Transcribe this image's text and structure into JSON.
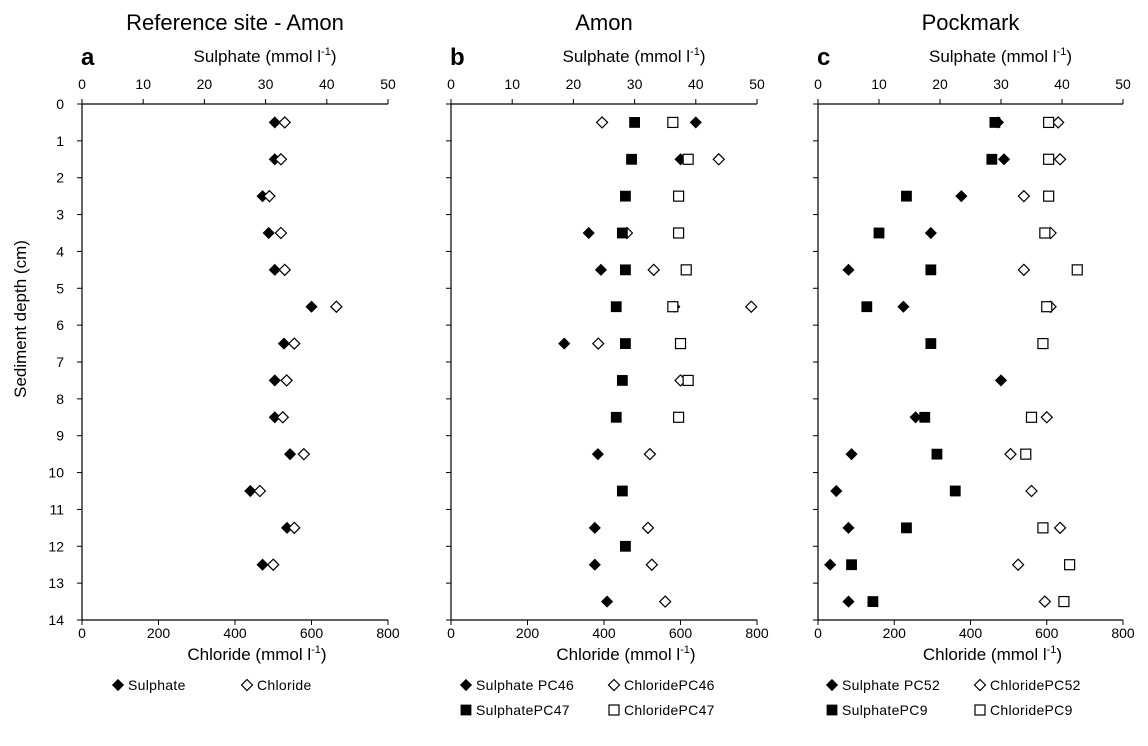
{
  "figure": {
    "ylabel": "Sediment depth (cm)",
    "ylim": [
      0,
      14
    ],
    "yticks": [
      0,
      1,
      2,
      3,
      4,
      5,
      6,
      7,
      8,
      9,
      10,
      11,
      12,
      13,
      14
    ]
  },
  "chart_data": [
    {
      "type": "scatter",
      "title": "Reference site - Amon",
      "panel_letter": "a",
      "top_axis": {
        "label": "Sulphate (mmol l",
        "label_sup": "-1",
        "label_end": ")",
        "range": [
          0,
          50
        ],
        "ticks": [
          0,
          10,
          20,
          30,
          40,
          50
        ]
      },
      "bottom_axis": {
        "label": "Chloride (mmol l",
        "label_sup": "-1",
        "label_end": ")",
        "range": [
          0,
          800
        ],
        "ticks": [
          0,
          200,
          400,
          600,
          800
        ]
      },
      "y_axis": {
        "label": "Sediment depth (cm)",
        "range": [
          0,
          14
        ],
        "inverted": true
      },
      "series": [
        {
          "name": "Sulphate",
          "axis": "top",
          "marker": "diamond-filled",
          "points": [
            [
              31.5,
              0.5
            ],
            [
              31.5,
              1.5
            ],
            [
              29.5,
              2.5
            ],
            [
              30.5,
              3.5
            ],
            [
              31.5,
              4.5
            ],
            [
              37.5,
              5.5
            ],
            [
              33,
              6.5
            ],
            [
              31.5,
              7.5
            ],
            [
              31.5,
              8.5
            ],
            [
              34,
              9.5
            ],
            [
              27.5,
              10.5
            ],
            [
              33.5,
              11.5
            ],
            [
              29.5,
              12.5
            ]
          ]
        },
        {
          "name": "Chloride",
          "axis": "bottom",
          "marker": "diamond-open",
          "points": [
            [
              530,
              0.5
            ],
            [
              520,
              1.5
            ],
            [
              490,
              2.5
            ],
            [
              520,
              3.5
            ],
            [
              530,
              4.5
            ],
            [
              665,
              5.5
            ],
            [
              555,
              6.5
            ],
            [
              535,
              7.5
            ],
            [
              525,
              8.5
            ],
            [
              580,
              9.5
            ],
            [
              465,
              10.5
            ],
            [
              555,
              11.5
            ],
            [
              500,
              12.5
            ]
          ]
        }
      ],
      "legend": [
        {
          "marker": "diamond-filled",
          "label": "Sulphate"
        },
        {
          "marker": "diamond-open",
          "label": "Chloride"
        }
      ]
    },
    {
      "type": "scatter",
      "title": "Amon",
      "panel_letter": "b",
      "top_axis": {
        "label": "Sulphate (mmol l",
        "label_sup": "-1",
        "label_end": ")",
        "range": [
          0,
          50
        ],
        "ticks": [
          0,
          10,
          20,
          30,
          40,
          50
        ]
      },
      "bottom_axis": {
        "label": "Chloride (mmol l",
        "label_sup": "-1",
        "label_end": ")",
        "range": [
          0,
          800
        ],
        "ticks": [
          0,
          200,
          400,
          600,
          800
        ]
      },
      "y_axis": {
        "label": "Sediment depth (cm)",
        "range": [
          0,
          14
        ],
        "inverted": true
      },
      "series": [
        {
          "name": "Sulphate PC46",
          "axis": "top",
          "marker": "diamond-filled",
          "points": [
            [
              40,
              0.5
            ],
            [
              37.5,
              1.5
            ],
            [
              22.5,
              3.5
            ],
            [
              24.5,
              4.5
            ],
            [
              36.5,
              5.5
            ],
            [
              18.5,
              6.5
            ],
            [
              24,
              9.5
            ],
            [
              23.5,
              11.5
            ],
            [
              23.5,
              12.5
            ],
            [
              25.5,
              13.5
            ]
          ]
        },
        {
          "name": "Chloride PC46",
          "axis": "bottom",
          "marker": "diamond-open",
          "points": [
            [
              395,
              0.5
            ],
            [
              700,
              1.5
            ],
            [
              460,
              3.5
            ],
            [
              530,
              4.5
            ],
            [
              785,
              5.5
            ],
            [
              385,
              6.5
            ],
            [
              600,
              7.5
            ],
            [
              520,
              9.5
            ],
            [
              515,
              11.5
            ],
            [
              525,
              12.5
            ],
            [
              560,
              13.5
            ]
          ]
        },
        {
          "name": "Sulphate PC47",
          "axis": "top",
          "marker": "square-filled",
          "points": [
            [
              30,
              0.5
            ],
            [
              29.5,
              1.5
            ],
            [
              28.5,
              2.5
            ],
            [
              28,
              3.5
            ],
            [
              28.5,
              4.5
            ],
            [
              27,
              5.5
            ],
            [
              28.5,
              6.5
            ],
            [
              28,
              7.5
            ],
            [
              27,
              8.5
            ],
            [
              28,
              10.5
            ],
            [
              28.5,
              12
            ]
          ]
        },
        {
          "name": "Chloride PC47",
          "axis": "bottom",
          "marker": "square-open",
          "points": [
            [
              580,
              0.5
            ],
            [
              620,
              1.5
            ],
            [
              595,
              2.5
            ],
            [
              595,
              3.5
            ],
            [
              615,
              4.5
            ],
            [
              580,
              5.5
            ],
            [
              600,
              6.5
            ],
            [
              620,
              7.5
            ],
            [
              595,
              8.5
            ]
          ]
        }
      ],
      "legend": [
        {
          "marker": "diamond-filled",
          "label": "Sulphate PC46"
        },
        {
          "marker": "diamond-open",
          "label": "ChloridePC46"
        },
        {
          "marker": "square-filled",
          "label": "SulphatePC47"
        },
        {
          "marker": "square-open",
          "label": "ChloridePC47"
        }
      ]
    },
    {
      "type": "scatter",
      "title": "Pockmark",
      "panel_letter": "c",
      "top_axis": {
        "label": "Sulphate (mmol l",
        "label_sup": "-1",
        "label_end": ")",
        "range": [
          0,
          50
        ],
        "ticks": [
          0,
          10,
          20,
          30,
          40,
          50
        ]
      },
      "bottom_axis": {
        "label": "Chloride (mmol l",
        "label_sup": "-1",
        "label_end": ")",
        "range": [
          0,
          800
        ],
        "ticks": [
          0,
          200,
          400,
          600,
          800
        ]
      },
      "y_axis": {
        "label": "Sediment depth (cm)",
        "range": [
          0,
          14
        ],
        "inverted": true
      },
      "series": [
        {
          "name": "Sulphate PC52",
          "axis": "top",
          "marker": "diamond-filled",
          "points": [
            [
              29.5,
              0.5
            ],
            [
              30.5,
              1.5
            ],
            [
              23.5,
              2.5
            ],
            [
              18.5,
              3.5
            ],
            [
              5,
              4.5
            ],
            [
              14,
              5.5
            ],
            [
              30,
              7.5
            ],
            [
              16,
              8.5
            ],
            [
              5.5,
              9.5
            ],
            [
              3,
              10.5
            ],
            [
              5,
              11.5
            ],
            [
              2,
              12.5
            ],
            [
              5,
              13.5
            ]
          ]
        },
        {
          "name": "Chloride PC52",
          "axis": "bottom",
          "marker": "diamond-open",
          "points": [
            [
              630,
              0.5
            ],
            [
              635,
              1.5
            ],
            [
              540,
              2.5
            ],
            [
              610,
              3.5
            ],
            [
              540,
              4.5
            ],
            [
              610,
              5.5
            ],
            [
              600,
              8.5
            ],
            [
              505,
              9.5
            ],
            [
              560,
              10.5
            ],
            [
              635,
              11.5
            ],
            [
              525,
              12.5
            ],
            [
              595,
              13.5
            ]
          ]
        },
        {
          "name": "Sulphate PC9",
          "axis": "top",
          "marker": "square-filled",
          "points": [
            [
              29,
              0.5
            ],
            [
              28.5,
              1.5
            ],
            [
              14.5,
              2.5
            ],
            [
              10,
              3.5
            ],
            [
              18.5,
              4.5
            ],
            [
              8,
              5.5
            ],
            [
              18.5,
              6.5
            ],
            [
              17.5,
              8.5
            ],
            [
              19.5,
              9.5
            ],
            [
              22.5,
              10.5
            ],
            [
              14.5,
              11.5
            ],
            [
              5.5,
              12.5
            ],
            [
              9,
              13.5
            ]
          ]
        },
        {
          "name": "Chloride PC9",
          "axis": "bottom",
          "marker": "square-open",
          "points": [
            [
              605,
              0.5
            ],
            [
              605,
              1.5
            ],
            [
              605,
              2.5
            ],
            [
              595,
              3.5
            ],
            [
              680,
              4.5
            ],
            [
              600,
              5.5
            ],
            [
              590,
              6.5
            ],
            [
              560,
              8.5
            ],
            [
              545,
              9.5
            ],
            [
              590,
              11.5
            ],
            [
              660,
              12.5
            ],
            [
              645,
              13.5
            ]
          ]
        }
      ],
      "legend": [
        {
          "marker": "diamond-filled",
          "label": "Sulphate PC52"
        },
        {
          "marker": "diamond-open",
          "label": "ChloridePC52"
        },
        {
          "marker": "square-filled",
          "label": "SulphatePC9"
        },
        {
          "marker": "square-open",
          "label": "ChloridePC9"
        }
      ]
    }
  ]
}
